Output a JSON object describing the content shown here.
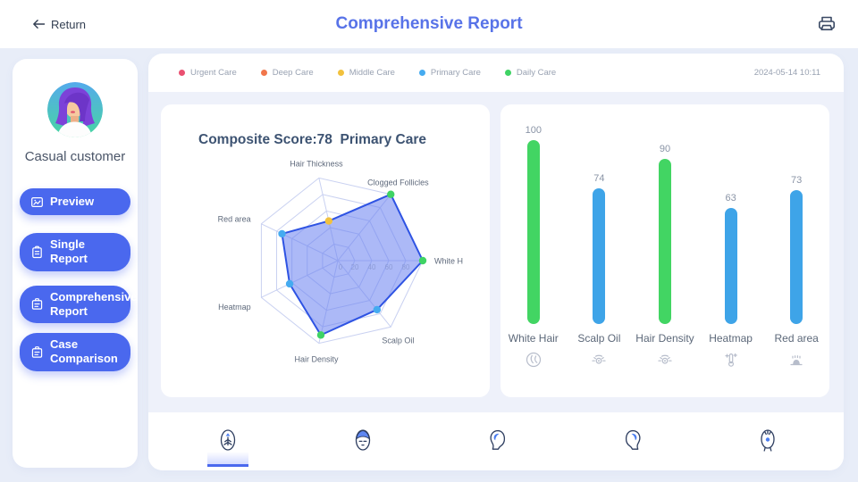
{
  "header": {
    "back_label": "Return",
    "title": "Comprehensive Report"
  },
  "sidebar": {
    "customer_name": "Casual customer",
    "buttons": [
      {
        "label": "Preview",
        "icon": "preview-icon"
      },
      {
        "label": "Single Report",
        "icon": "single-report-icon"
      },
      {
        "label": "Comprehensive Report",
        "icon": "comprehensive-report-icon"
      },
      {
        "label": "Case Comparison",
        "icon": "case-comparison-icon"
      }
    ]
  },
  "report_header": {
    "legend": [
      {
        "label": "Urgent Care",
        "color": "#ea5071"
      },
      {
        "label": "Deep Care",
        "color": "#f1764b"
      },
      {
        "label": "Middle Care",
        "color": "#f2c13d"
      },
      {
        "label": "Primary Care",
        "color": "#45abf0"
      },
      {
        "label": "Daily Care",
        "color": "#3fd364"
      }
    ],
    "timestamp": "2024-05-14 10:11"
  },
  "chart_data": [
    {
      "type": "radar",
      "title": "Composite Score:78  Primary Care",
      "max": 100,
      "tick_labels": [
        0,
        20,
        40,
        60,
        80
      ],
      "grid": "on",
      "axes": [
        {
          "label": "White H",
          "full_name": "White Hair",
          "value": 100,
          "point_color": "#3fd364"
        },
        {
          "label": "Clogged Follicles",
          "full_name": "Clogged Follicles",
          "value": 100,
          "point_color": "#3fd364"
        },
        {
          "label": "Hair Thickness",
          "full_name": "Hair Thickness",
          "value": 48,
          "point_color": "#f2c13d"
        },
        {
          "label": "Red area",
          "full_name": "Red area",
          "value": 73,
          "point_color": "#45abf0"
        },
        {
          "label": "Heatmap",
          "full_name": "Heatmap",
          "value": 63,
          "point_color": "#45abf0"
        },
        {
          "label": "Hair Density",
          "full_name": "Hair Density",
          "value": 90,
          "point_color": "#3fd364"
        },
        {
          "label": "Scalp Oil",
          "full_name": "Scalp Oil",
          "value": 74,
          "point_color": "#45abf0"
        }
      ],
      "fill_color": "rgba(104,128,240,0.55)",
      "stroke_color": "#2e53e3"
    },
    {
      "type": "bar",
      "categories": [
        "White Hair",
        "Scalp Oil",
        "Hair Density",
        "Heatmap",
        "Red area"
      ],
      "values": [
        100,
        74,
        90,
        63,
        73
      ],
      "bar_colors": [
        "#42d563",
        "#3ea4e8",
        "#42d563",
        "#3ea4e8",
        "#3ea4e8"
      ],
      "icons": [
        "white-hair-icon",
        "scalp-oil-icon",
        "hair-density-icon",
        "heatmap-icon",
        "red-area-icon"
      ],
      "ylim": [
        0,
        100
      ],
      "grid": "off"
    }
  ],
  "tabs": [
    {
      "name": "scalp-top",
      "active": true
    },
    {
      "name": "face-front",
      "active": false
    },
    {
      "name": "head-side-left",
      "active": false
    },
    {
      "name": "head-side-right",
      "active": false
    },
    {
      "name": "head-back",
      "active": false
    }
  ]
}
